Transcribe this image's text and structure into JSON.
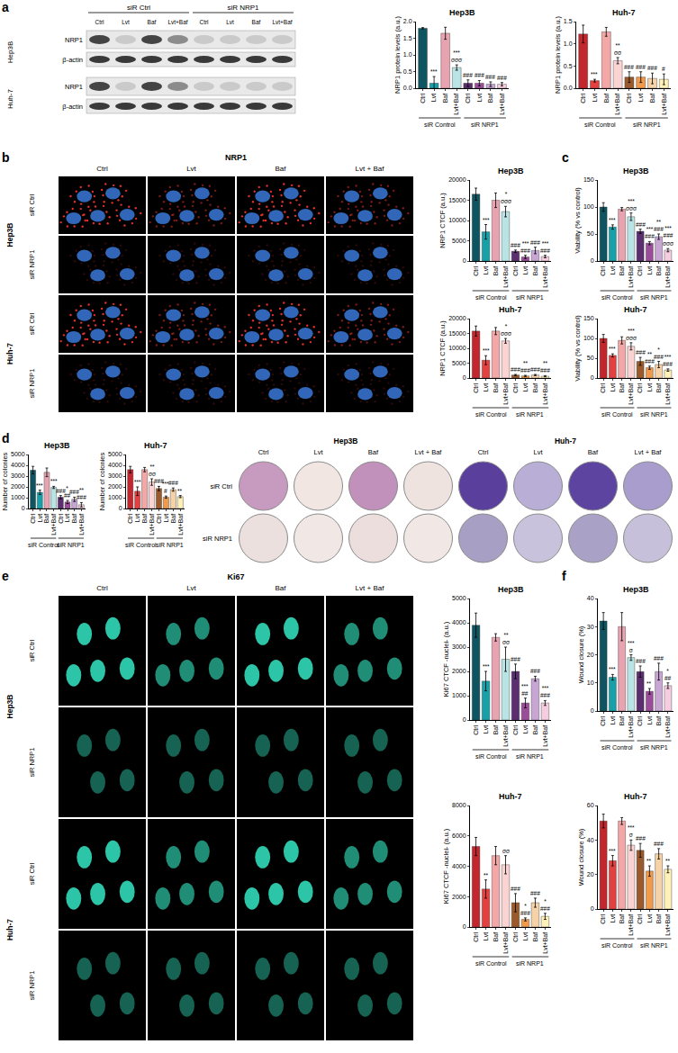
{
  "panel_labels": [
    "a",
    "b",
    "c",
    "d",
    "e",
    "f"
  ],
  "blot": {
    "groups": [
      "siR Ctrl",
      "siR NRP1"
    ],
    "lanes": [
      "Ctrl",
      "Lvt",
      "Baf",
      "Lvt+Baf",
      "Ctrl",
      "Lvt",
      "Baf",
      "Lvt+Baf"
    ],
    "cell_lines": [
      "Hep3B",
      "Huh-7"
    ],
    "bands": [
      "NRP1",
      "β-actin"
    ]
  },
  "microscopy_b": {
    "stain": "NRP1",
    "columns": [
      "Ctrl",
      "Lvt",
      "Baf",
      "Lvt + Baf"
    ],
    "cell_lines": [
      "Hep3B",
      "Huh-7"
    ],
    "rows": [
      "siR Ctrl",
      "siR NRP1"
    ]
  },
  "plates_d": {
    "cell_lines": [
      "Hep3B",
      "Huh-7"
    ],
    "columns": [
      "Ctrl",
      "Lvt",
      "Baf",
      "Lvt + Baf"
    ],
    "rows": [
      "siR Ctrl",
      "siR NRP1"
    ]
  },
  "microscopy_e": {
    "stain": "Ki67",
    "columns": [
      "Ctrl",
      "Lvt",
      "Baf",
      "Lvt + Baf"
    ],
    "cell_lines": [
      "Hep3B",
      "Huh-7"
    ],
    "rows": [
      "siR Ctrl",
      "siR NRP1"
    ]
  },
  "chart_data": [
    {
      "type": "bar",
      "title": "Hep3B",
      "y_label": "NRP1 protein levels (a.u.)",
      "categories": [
        "Ctrl",
        "Lvt",
        "Baf",
        "Lvt+Baf",
        "Ctrl",
        "Lvt",
        "Baf",
        "Lvt+Baf"
      ],
      "group_labels": [
        "siR Control",
        "siR NRP1"
      ],
      "values": [
        1.8,
        0.15,
        1.65,
        0.62,
        0.15,
        0.15,
        0.12,
        0.12
      ],
      "error": [
        0.02,
        0.2,
        0.18,
        0.08,
        0.1,
        0.08,
        0.07,
        0.05
      ],
      "significance": [
        [],
        [
          "***"
        ],
        [],
        [
          "***",
          "σσσ"
        ],
        [
          "###"
        ],
        [
          "###"
        ],
        [
          "###"
        ],
        [
          "###"
        ]
      ],
      "colors": [
        "#0f5561",
        "#17a0a8",
        "#e8a3b1",
        "#b9e3e4",
        "#5a2e6f",
        "#9c4d9a",
        "#c8a6d4",
        "#f6cde0"
      ],
      "ylim": [
        0,
        2
      ],
      "yticks": [
        {
          "value": 0,
          "label": "0.0"
        },
        0.5,
        {
          "value": 1,
          "label": "1.0"
        },
        1.5,
        {
          "value": 2,
          "label": "2.0"
        }
      ],
      "grid": false
    },
    {
      "type": "bar",
      "title": "Huh-7",
      "y_label": "NRP1 protein levels (a.u.)",
      "categories": [
        "Ctrl",
        "Lvt",
        "Baf",
        "Lvt+Baf",
        "Ctrl",
        "Lvt",
        "Baf",
        "Lvt+Baf"
      ],
      "group_labels": [
        "siR Control",
        "siR NRP1"
      ],
      "values": [
        1.22,
        0.17,
        1.27,
        0.62,
        0.25,
        0.25,
        0.22,
        0.2
      ],
      "error": [
        0.2,
        0.03,
        0.1,
        0.07,
        0.12,
        0.12,
        0.12,
        0.12
      ],
      "significance": [
        [],
        [
          "***"
        ],
        [],
        [
          "**",
          "σσ"
        ],
        [
          "###"
        ],
        [
          "###"
        ],
        [
          "###"
        ],
        [
          "#"
        ]
      ],
      "colors": [
        "#c2272d",
        "#e3413f",
        "#f4a7a7",
        "#fbd3d3",
        "#9a5a2c",
        "#f19a4b",
        "#f6d2a7",
        "#fff1b8"
      ],
      "ylim": [
        0,
        1.5
      ],
      "yticks": [
        {
          "value": 0,
          "label": "0.0"
        },
        0.5,
        {
          "value": 1,
          "label": "1.0"
        },
        1.5
      ],
      "grid": false
    },
    {
      "type": "bar",
      "title": "Hep3B",
      "y_label": "NRP1 CTCF (a.u.)",
      "categories": [
        "Ctrl",
        "Lvt",
        "Baf",
        "Lvt+Baf",
        "Ctrl",
        "Lvt",
        "Baf",
        "Lvt+Baf"
      ],
      "group_labels": [
        "siR Control",
        "siR NRP1"
      ],
      "values": [
        16500,
        7200,
        15000,
        12200,
        2400,
        1000,
        2600,
        1100
      ],
      "error": [
        1500,
        1800,
        1800,
        1300,
        300,
        400,
        800,
        300
      ],
      "significance": [
        [],
        [
          "***"
        ],
        [],
        [
          "*",
          "σσσ"
        ],
        [
          "###"
        ],
        [
          "***",
          "###"
        ],
        [
          "###"
        ],
        [
          "***",
          "###"
        ]
      ],
      "colors": [
        "#0f5561",
        "#17a0a8",
        "#e8a3b1",
        "#b9e3e4",
        "#5a2e6f",
        "#9c4d9a",
        "#c8a6d4",
        "#f6cde0"
      ],
      "ylim": [
        0,
        20000
      ],
      "yticks": [
        0,
        5000,
        10000,
        15000,
        20000
      ],
      "grid": false
    },
    {
      "type": "bar",
      "title": "Huh-7",
      "y_label": "NRP1 CTCF (a.u.)",
      "categories": [
        "Ctrl",
        "Lvt",
        "Baf",
        "Lvt+Baf",
        "Ctrl",
        "Lvt",
        "Baf",
        "Lvt+Baf"
      ],
      "group_labels": [
        "siR Control",
        "siR NRP1"
      ],
      "values": [
        15800,
        6000,
        15800,
        12500,
        1000,
        700,
        1000,
        600
      ],
      "error": [
        1700,
        1500,
        1200,
        800,
        200,
        200,
        200,
        200
      ],
      "significance": [
        [],
        [
          "***"
        ],
        [],
        [
          "*",
          "σσσ"
        ],
        [
          "###"
        ],
        [
          "**",
          "###"
        ],
        [
          "###"
        ],
        [
          "**",
          "###"
        ]
      ],
      "colors": [
        "#c2272d",
        "#e3413f",
        "#f4a7a7",
        "#fbd3d3",
        "#9a5a2c",
        "#f19a4b",
        "#f6d2a7",
        "#fff1b8"
      ],
      "ylim": [
        0,
        20000
      ],
      "yticks": [
        0,
        5000,
        10000,
        15000,
        20000
      ],
      "grid": false
    },
    {
      "type": "bar",
      "title": "Hep3B",
      "y_label": "Viability (% vs control)",
      "categories": [
        "Ctrl",
        "Lvt",
        "Baf",
        "Lvt+Baf",
        "Ctrl",
        "Lvt",
        "Baf",
        "Lvt+Baf"
      ],
      "group_labels": [
        "siR Control",
        "siR NRP1"
      ],
      "values": [
        100,
        63,
        96,
        82,
        55,
        33,
        45,
        20
      ],
      "error": [
        8,
        4,
        3,
        7,
        4,
        3,
        5,
        3
      ],
      "significance": [
        [],
        [
          "***"
        ],
        [],
        [
          "***",
          "σσσ"
        ],
        [
          "###"
        ],
        [
          "***",
          "###"
        ],
        [
          "**",
          "###"
        ],
        [
          "***",
          "###",
          "σσσ"
        ]
      ],
      "colors": [
        "#0f5561",
        "#17a0a8",
        "#e8a3b1",
        "#b9e3e4",
        "#5a2e6f",
        "#9c4d9a",
        "#c8a6d4",
        "#f6cde0"
      ],
      "ylim": [
        0,
        150
      ],
      "yticks": [
        0,
        50,
        100,
        150
      ],
      "grid": false
    },
    {
      "type": "bar",
      "title": "Huh-7",
      "y_label": "Viability (% vs control)",
      "categories": [
        "Ctrl",
        "Lvt",
        "Baf",
        "Lvt+Baf",
        "Ctrl",
        "Lvt",
        "Baf",
        "Lvt+Baf"
      ],
      "group_labels": [
        "siR Control",
        "siR NRP1"
      ],
      "values": [
        100,
        57,
        95,
        80,
        42,
        26,
        34,
        20
      ],
      "error": [
        10,
        4,
        9,
        9,
        10,
        4,
        8,
        3
      ],
      "significance": [
        [],
        [
          "***"
        ],
        [],
        [
          "***",
          "σσσ"
        ],
        [
          "###"
        ],
        [
          "**",
          "###"
        ],
        [
          "*",
          "###"
        ],
        [
          "***",
          "###"
        ]
      ],
      "colors": [
        "#c2272d",
        "#e3413f",
        "#f4a7a7",
        "#fbd3d3",
        "#9a5a2c",
        "#f19a4b",
        "#f6d2a7",
        "#fff1b8"
      ],
      "ylim": [
        0,
        150
      ],
      "yticks": [
        0,
        50,
        100,
        150
      ],
      "grid": false
    },
    {
      "type": "bar",
      "title": "Hep3B",
      "y_label": "Number of colonies",
      "categories": [
        "Ctrl",
        "Lvt",
        "Baf",
        "Lvt+Baf",
        "Ctrl",
        "Lvt",
        "Baf",
        "Lvt+Baf"
      ],
      "group_labels": [
        "siR Control",
        "siR NRP1"
      ],
      "values": [
        3550,
        1500,
        3350,
        1950,
        1050,
        600,
        850,
        350
      ],
      "error": [
        350,
        200,
        400,
        100,
        150,
        150,
        200,
        200
      ],
      "significance": [
        [],
        [
          "***"
        ],
        [],
        [
          "***"
        ],
        [
          "###"
        ],
        [
          "*",
          "##"
        ],
        [
          "###"
        ],
        [
          "**",
          "###"
        ]
      ],
      "colors": [
        "#0f5561",
        "#17a0a8",
        "#e8a3b1",
        "#b9e3e4",
        "#5a2e6f",
        "#9c4d9a",
        "#c8a6d4",
        "#f6cde0"
      ],
      "ylim": [
        0,
        5000
      ],
      "yticks": [
        0,
        1000,
        2000,
        3000,
        4000,
        5000
      ],
      "grid": false
    },
    {
      "type": "bar",
      "title": "Huh-7",
      "y_label": "Number of colonies",
      "categories": [
        "Ctrl",
        "Lvt",
        "Baf",
        "Lvt+Baf",
        "Ctrl",
        "Lvt",
        "Baf",
        "Lvt+Baf"
      ],
      "group_labels": [
        "siR Control",
        "siR NRP1"
      ],
      "values": [
        3600,
        1600,
        3600,
        2450,
        1850,
        1050,
        1750,
        1100
      ],
      "error": [
        300,
        400,
        200,
        300,
        200,
        100,
        150,
        100
      ],
      "significance": [
        [],
        [
          "***"
        ],
        [],
        [
          "**",
          "σσ"
        ],
        [
          "###"
        ],
        [
          "***",
          "#"
        ],
        [
          "###"
        ],
        [
          "**"
        ]
      ],
      "colors": [
        "#c2272d",
        "#e3413f",
        "#f4a7a7",
        "#fbd3d3",
        "#9a5a2c",
        "#f19a4b",
        "#f6d2a7",
        "#fff1b8"
      ],
      "ylim": [
        0,
        5000
      ],
      "yticks": [
        0,
        1000,
        2000,
        3000,
        4000,
        5000
      ],
      "grid": false
    },
    {
      "type": "bar",
      "title": "Hep3B",
      "y_label": "Ki67 CTCF -nuclei- (a.u.)",
      "categories": [
        "Ctrl",
        "Lvt",
        "Baf",
        "Lvt+Baf",
        "Ctrl",
        "Lvt",
        "Baf",
        "Lvt+Baf"
      ],
      "group_labels": [
        "siR Control",
        "siR NRP1"
      ],
      "values": [
        3900,
        1600,
        3400,
        2500,
        2000,
        700,
        1700,
        700
      ],
      "error": [
        500,
        400,
        150,
        500,
        300,
        200,
        100,
        100
      ],
      "significance": [
        [],
        [
          "***"
        ],
        [],
        [
          "**",
          "σσ"
        ],
        [
          "###"
        ],
        [
          "***",
          "##"
        ],
        [
          "###"
        ],
        [
          "***",
          "###"
        ]
      ],
      "colors": [
        "#0f5561",
        "#17a0a8",
        "#e8a3b1",
        "#b9e3e4",
        "#5a2e6f",
        "#9c4d9a",
        "#c8a6d4",
        "#f6cde0"
      ],
      "ylim": [
        0,
        5000
      ],
      "yticks": [
        0,
        1000,
        2000,
        3000,
        4000,
        5000
      ],
      "grid": false
    },
    {
      "type": "bar",
      "title": "Huh-7",
      "y_label": "Ki67 CTCF -nuclei- (a.u.)",
      "categories": [
        "Ctrl",
        "Lvt",
        "Baf",
        "Lvt+Baf",
        "Ctrl",
        "Lvt",
        "Baf",
        "Lvt+Baf"
      ],
      "group_labels": [
        "siR Control",
        "siR NRP1"
      ],
      "values": [
        5300,
        2500,
        4700,
        4100,
        1600,
        500,
        1600,
        700
      ],
      "error": [
        600,
        600,
        600,
        600,
        600,
        100,
        300,
        200
      ],
      "significance": [
        [],
        [
          "**"
        ],
        [],
        [
          "σσ"
        ],
        [
          "###"
        ],
        [
          "*",
          "###"
        ],
        [
          "###"
        ],
        [
          "*",
          "###"
        ]
      ],
      "colors": [
        "#c2272d",
        "#e3413f",
        "#f4a7a7",
        "#fbd3d3",
        "#9a5a2c",
        "#f19a4b",
        "#f6d2a7",
        "#fff1b8"
      ],
      "ylim": [
        0,
        8000
      ],
      "yticks": [
        0,
        2000,
        4000,
        6000,
        8000
      ],
      "grid": false
    },
    {
      "type": "bar",
      "title": "Hep3B",
      "y_label": "Wound closure (%)",
      "categories": [
        "Ctrl",
        "Lvt",
        "Baf",
        "Lvt+Baf",
        "Ctrl",
        "Lvt",
        "Baf",
        "Lvt+Baf"
      ],
      "group_labels": [
        "siR Control",
        "siR NRP1"
      ],
      "values": [
        32,
        12,
        30,
        19,
        14,
        7,
        14,
        9
      ],
      "error": [
        3,
        1,
        5,
        1,
        2,
        1,
        3,
        1
      ],
      "significance": [
        [],
        [
          "***"
        ],
        [],
        [
          "***",
          "σ"
        ],
        [
          "###"
        ],
        [
          "**"
        ],
        [
          "###"
        ],
        [
          "*",
          "##"
        ]
      ],
      "colors": [
        "#0f5561",
        "#17a0a8",
        "#e8a3b1",
        "#b9e3e4",
        "#5a2e6f",
        "#9c4d9a",
        "#c8a6d4",
        "#f6cde0"
      ],
      "ylim": [
        0,
        40
      ],
      "yticks": [
        0,
        10,
        20,
        30,
        40
      ],
      "grid": false
    },
    {
      "type": "bar",
      "title": "Huh-7",
      "y_label": "Wound closure (%)",
      "categories": [
        "Ctrl",
        "Lvt",
        "Baf",
        "Lvt+Baf",
        "Ctrl",
        "Lvt",
        "Baf",
        "Lvt+Baf"
      ],
      "group_labels": [
        "siR Control",
        "siR NRP1"
      ],
      "values": [
        51,
        28,
        51,
        37,
        34,
        22,
        32,
        23
      ],
      "error": [
        4,
        3,
        2,
        3,
        4,
        3,
        3,
        2
      ],
      "significance": [
        [],
        [
          "***"
        ],
        [],
        [
          "***",
          "σ"
        ],
        [
          "###"
        ],
        [
          "**"
        ],
        [
          "###"
        ],
        [
          "**"
        ]
      ],
      "colors": [
        "#c2272d",
        "#e3413f",
        "#f4a7a7",
        "#fbd3d3",
        "#9a5a2c",
        "#f19a4b",
        "#f6d2a7",
        "#fff1b8"
      ],
      "ylim": [
        0,
        60
      ],
      "yticks": [
        0,
        20,
        40,
        60
      ],
      "grid": false
    }
  ]
}
